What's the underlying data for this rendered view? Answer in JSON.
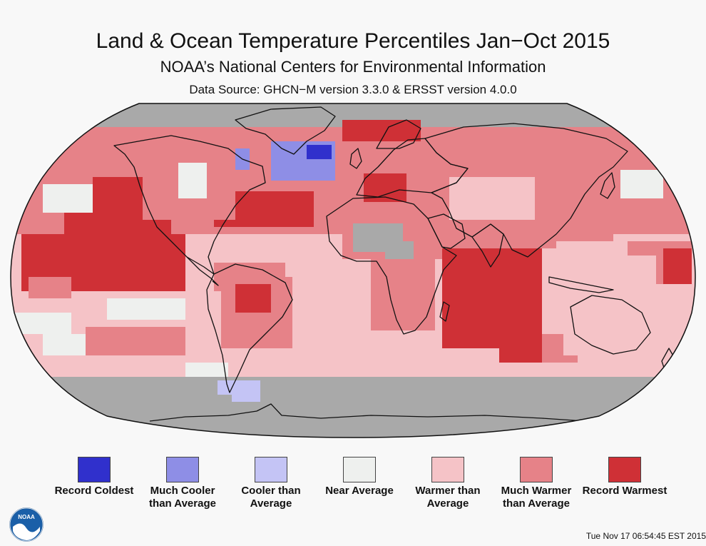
{
  "header": {
    "title": "Land & Ocean Temperature Percentiles Jan−Oct 2015",
    "subtitle": "NOAA’s National Centers for Environmental Information",
    "source": "Data Source: GHCN−M version 3.3.0 & ERSST version 4.0.0"
  },
  "legend": {
    "items": [
      {
        "label": "Record Coldest",
        "color": "#3030cc",
        "category": "record-coldest"
      },
      {
        "label": "Much Cooler than Average",
        "color": "#8e8ee6",
        "category": "much-cooler"
      },
      {
        "label": "Cooler than Average",
        "color": "#c4c4f5",
        "category": "cooler"
      },
      {
        "label": "Near Average",
        "color": "#eef0ee",
        "category": "near"
      },
      {
        "label": "Warmer than Average",
        "color": "#f5c3c7",
        "category": "warmer"
      },
      {
        "label": "Much Warmer than Average",
        "color": "#e68288",
        "category": "much-warmer"
      },
      {
        "label": "Record Warmest",
        "color": "#cf3036",
        "category": "record-warmest"
      }
    ]
  },
  "map": {
    "projection": "Robinson",
    "no_data_color": "#a9a9a9",
    "coastline_color": "#111111"
  },
  "logo": {
    "text": "NOAA"
  },
  "footer": {
    "timestamp": "Tue Nov 17 06:54:45 EST 2015"
  }
}
